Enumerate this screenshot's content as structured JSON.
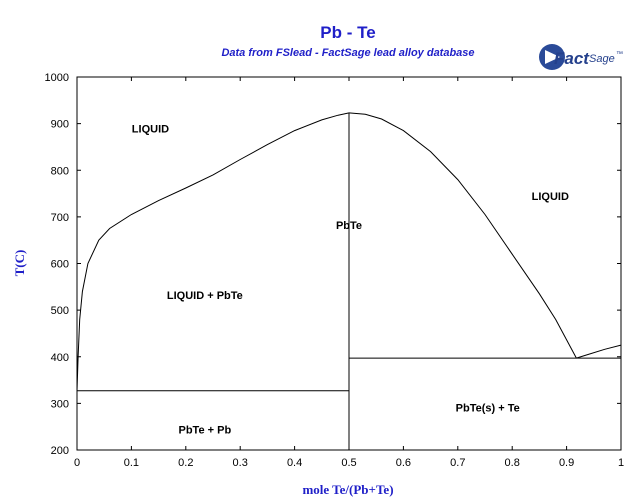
{
  "chart_data": {
    "type": "line",
    "title": "Pb - Te",
    "subtitle": "Data from FSlead - FactSage lead alloy database",
    "xlabel": "mole Te/(Pb+Te)",
    "ylabel": "T(C)",
    "xlim": [
      0,
      1
    ],
    "ylim": [
      200,
      1000
    ],
    "x_ticks": [
      "0",
      "0.1",
      "0.2",
      "0.3",
      "0.4",
      "0.5",
      "0.6",
      "0.7",
      "0.8",
      "0.9",
      "1"
    ],
    "y_ticks": [
      "200",
      "300",
      "400",
      "500",
      "600",
      "700",
      "800",
      "900",
      "1000"
    ],
    "grid": false,
    "series": [
      {
        "values": [
          [
            0.0,
            327
          ],
          [
            0.002,
            400
          ],
          [
            0.005,
            480
          ],
          [
            0.01,
            540
          ],
          [
            0.02,
            600
          ],
          [
            0.04,
            650
          ],
          [
            0.06,
            675
          ],
          [
            0.1,
            705
          ],
          [
            0.15,
            735
          ],
          [
            0.2,
            762
          ],
          [
            0.25,
            790
          ],
          [
            0.3,
            823
          ],
          [
            0.35,
            855
          ],
          [
            0.4,
            885
          ],
          [
            0.45,
            908
          ],
          [
            0.48,
            918
          ],
          [
            0.5,
            923
          ]
        ]
      },
      {
        "values": [
          [
            0.5,
            923
          ],
          [
            0.53,
            920
          ],
          [
            0.56,
            910
          ],
          [
            0.6,
            885
          ],
          [
            0.65,
            840
          ],
          [
            0.7,
            780
          ],
          [
            0.75,
            705
          ],
          [
            0.8,
            620
          ],
          [
            0.85,
            535
          ],
          [
            0.88,
            480
          ],
          [
            0.918,
            397
          ]
        ]
      },
      {
        "values": [
          [
            0.918,
            397
          ],
          [
            0.94,
            405
          ],
          [
            0.97,
            416
          ],
          [
            1.0,
            425
          ]
        ]
      },
      {
        "values": [
          [
            0.0,
            327
          ],
          [
            0.5,
            327
          ]
        ]
      },
      {
        "values": [
          [
            0.5,
            397
          ],
          [
            1.0,
            397
          ]
        ]
      },
      {
        "values": [
          [
            0.5,
            200
          ],
          [
            0.5,
            923
          ]
        ]
      }
    ],
    "annotations": [
      {
        "text": "LIQUID",
        "x": 0.135,
        "y": 890
      },
      {
        "text": "LIQUID",
        "x": 0.87,
        "y": 745
      },
      {
        "text": "PbTe",
        "x": 0.5,
        "y": 683
      },
      {
        "text": "LIQUID + PbTe",
        "x": 0.235,
        "y": 532
      },
      {
        "text": "PbTe + Pb",
        "x": 0.235,
        "y": 244
      },
      {
        "text": "PbTe(s) + Te",
        "x": 0.755,
        "y": 291
      }
    ]
  },
  "logo": {
    "name": "Fact",
    "suffix": "Sage",
    "mark": "™"
  }
}
